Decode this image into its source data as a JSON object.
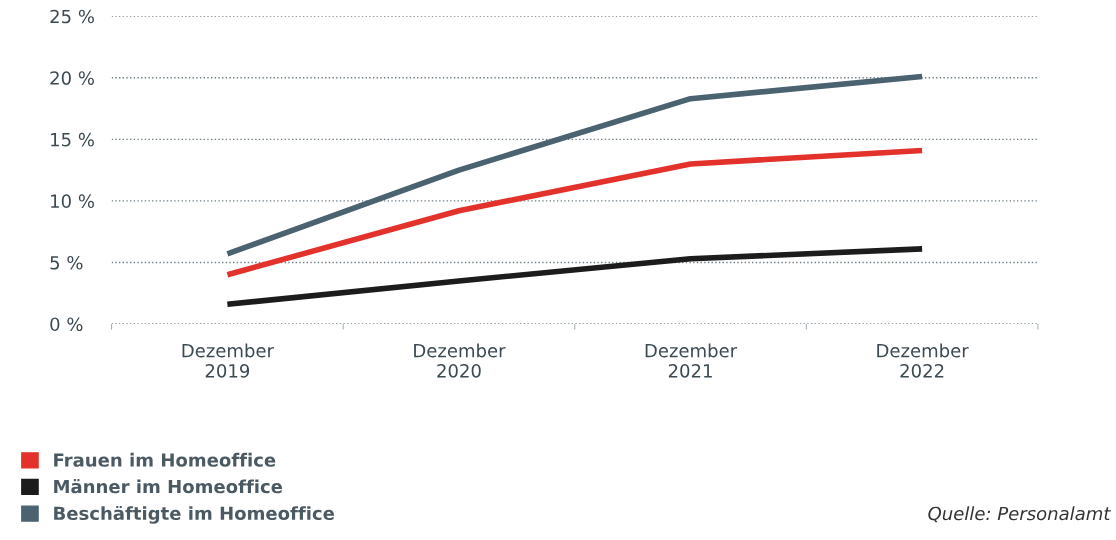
{
  "chart_data": {
    "type": "line",
    "categories": [
      "Dezember\n2019",
      "Dezember\n2020",
      "Dezember\n2021",
      "Dezember\n2022"
    ],
    "series": [
      {
        "name": "Frauen im Homeoffice",
        "color": "#e3312b",
        "values": [
          4.0,
          9.2,
          13.0,
          14.1
        ]
      },
      {
        "name": "Männer im Homeoffice",
        "color": "#1c1c1c",
        "values": [
          1.6,
          3.5,
          5.3,
          6.1
        ]
      },
      {
        "name": "Beschäftigte im Homeoffice",
        "color": "#4b6370",
        "values": [
          5.7,
          12.5,
          18.3,
          20.1
        ]
      }
    ],
    "ylim": [
      0,
      25
    ],
    "yticks": [
      {
        "value": 0,
        "label": "0 %"
      },
      {
        "value": 5,
        "label": "5 %"
      },
      {
        "value": 10,
        "label": "10 %"
      },
      {
        "value": 15,
        "label": "15 %"
      },
      {
        "value": 20,
        "label": "20 %"
      },
      {
        "value": 25,
        "label": "25 %"
      }
    ],
    "grid": "y",
    "legend": "bottom left",
    "marker": "none",
    "line_style": "solid",
    "annotations": [
      "Quelle: Personalamt"
    ]
  }
}
